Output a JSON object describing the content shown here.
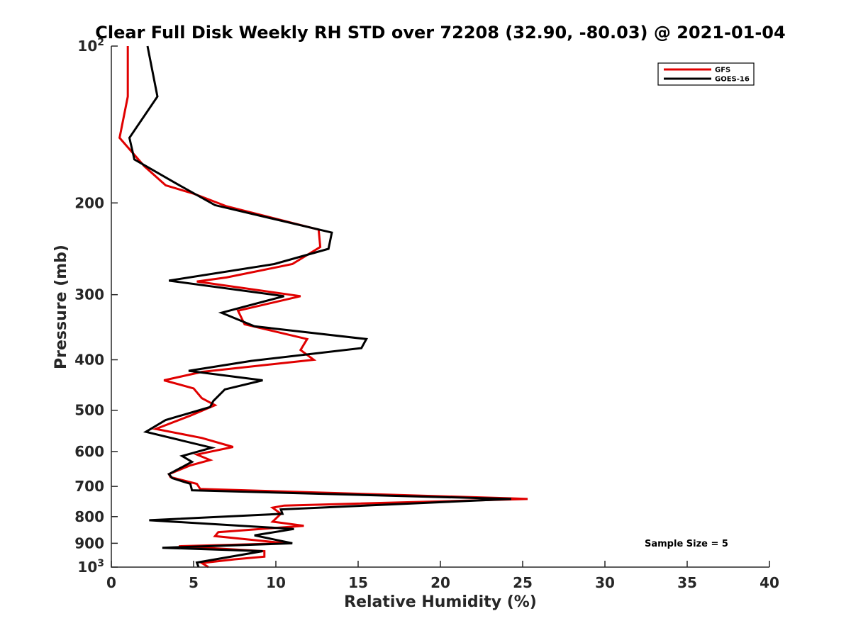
{
  "chart_data": {
    "type": "line",
    "title": "Clear Full Disk Weekly RH STD over 72208 (32.90, -80.03) @ 2021-01-04",
    "xlabel": "Relative Humidity (%)",
    "ylabel": "Pressure (mb)",
    "xlim": [
      0,
      40
    ],
    "ylim": [
      100,
      1000
    ],
    "yscale": "log",
    "y_reversed": true,
    "grid": false,
    "legend_position": "top-right",
    "xticks": [
      0,
      5,
      10,
      15,
      20,
      25,
      30,
      35,
      40
    ],
    "yticks": [
      {
        "value": 100,
        "base": "10",
        "exp": "2"
      },
      {
        "value": 200,
        "label": "200"
      },
      {
        "value": 300,
        "label": "300"
      },
      {
        "value": 400,
        "label": "400"
      },
      {
        "value": 500,
        "label": "500"
      },
      {
        "value": 600,
        "label": "600"
      },
      {
        "value": 700,
        "label": "700"
      },
      {
        "value": 800,
        "label": "800"
      },
      {
        "value": 900,
        "label": "900"
      },
      {
        "value": 1000,
        "base": "10",
        "exp": "3"
      }
    ],
    "annotation": "Sample Size = 5",
    "series": [
      {
        "name": "GFS",
        "color": "#e00000",
        "points": [
          [
            1.0,
            100
          ],
          [
            1.0,
            125
          ],
          [
            0.5,
            150
          ],
          [
            2.0,
            170
          ],
          [
            3.3,
            185
          ],
          [
            5.0,
            192
          ],
          [
            7.0,
            203
          ],
          [
            12.6,
            225
          ],
          [
            12.7,
            243
          ],
          [
            11.0,
            262
          ],
          [
            7.0,
            278
          ],
          [
            5.2,
            283
          ],
          [
            11.5,
            302
          ],
          [
            7.7,
            322
          ],
          [
            8.1,
            342
          ],
          [
            11.9,
            365
          ],
          [
            11.5,
            383
          ],
          [
            12.3,
            400
          ],
          [
            5.5,
            422
          ],
          [
            3.2,
            438
          ],
          [
            5.0,
            454
          ],
          [
            5.5,
            474
          ],
          [
            6.3,
            489
          ],
          [
            4.8,
            512
          ],
          [
            2.7,
            543
          ],
          [
            5.5,
            565
          ],
          [
            7.4,
            588
          ],
          [
            5.2,
            608
          ],
          [
            6.0,
            623
          ],
          [
            4.8,
            638
          ],
          [
            3.5,
            663
          ],
          [
            3.6,
            672
          ],
          [
            5.2,
            692
          ],
          [
            5.4,
            708
          ],
          [
            24.3,
            738
          ],
          [
            25.3,
            740
          ],
          [
            10.5,
            762
          ],
          [
            9.8,
            769
          ],
          [
            10.3,
            790
          ],
          [
            9.8,
            818
          ],
          [
            11.7,
            833
          ],
          [
            6.5,
            857
          ],
          [
            6.3,
            872
          ],
          [
            10.6,
            900
          ],
          [
            4.1,
            912
          ],
          [
            9.3,
            932
          ],
          [
            9.3,
            955
          ],
          [
            7.5,
            966
          ],
          [
            5.5,
            982
          ],
          [
            5.9,
            1000
          ]
        ]
      },
      {
        "name": "GOES-16",
        "color": "#000000",
        "points": [
          [
            2.2,
            100
          ],
          [
            2.8,
            125
          ],
          [
            1.1,
            150
          ],
          [
            1.4,
            165
          ],
          [
            4.0,
            184
          ],
          [
            6.3,
            202
          ],
          [
            13.4,
            228
          ],
          [
            13.2,
            245
          ],
          [
            9.9,
            262
          ],
          [
            3.5,
            282
          ],
          [
            10.5,
            302
          ],
          [
            6.7,
            325
          ],
          [
            8.7,
            345
          ],
          [
            15.5,
            365
          ],
          [
            15.2,
            380
          ],
          [
            8.5,
            402
          ],
          [
            4.7,
            420
          ],
          [
            9.2,
            438
          ],
          [
            6.9,
            456
          ],
          [
            6.2,
            480
          ],
          [
            6.0,
            493
          ],
          [
            3.3,
            522
          ],
          [
            2.1,
            550
          ],
          [
            6.1,
            590
          ],
          [
            4.3,
            612
          ],
          [
            4.9,
            628
          ],
          [
            3.5,
            663
          ],
          [
            3.7,
            675
          ],
          [
            4.8,
            692
          ],
          [
            4.9,
            712
          ],
          [
            24.3,
            740
          ],
          [
            10.3,
            775
          ],
          [
            10.4,
            790
          ],
          [
            2.3,
            813
          ],
          [
            11.1,
            845
          ],
          [
            8.7,
            869
          ],
          [
            11.0,
            900
          ],
          [
            3.1,
            918
          ],
          [
            9.2,
            932
          ],
          [
            5.2,
            980
          ],
          [
            5.3,
            1000
          ]
        ]
      }
    ]
  }
}
